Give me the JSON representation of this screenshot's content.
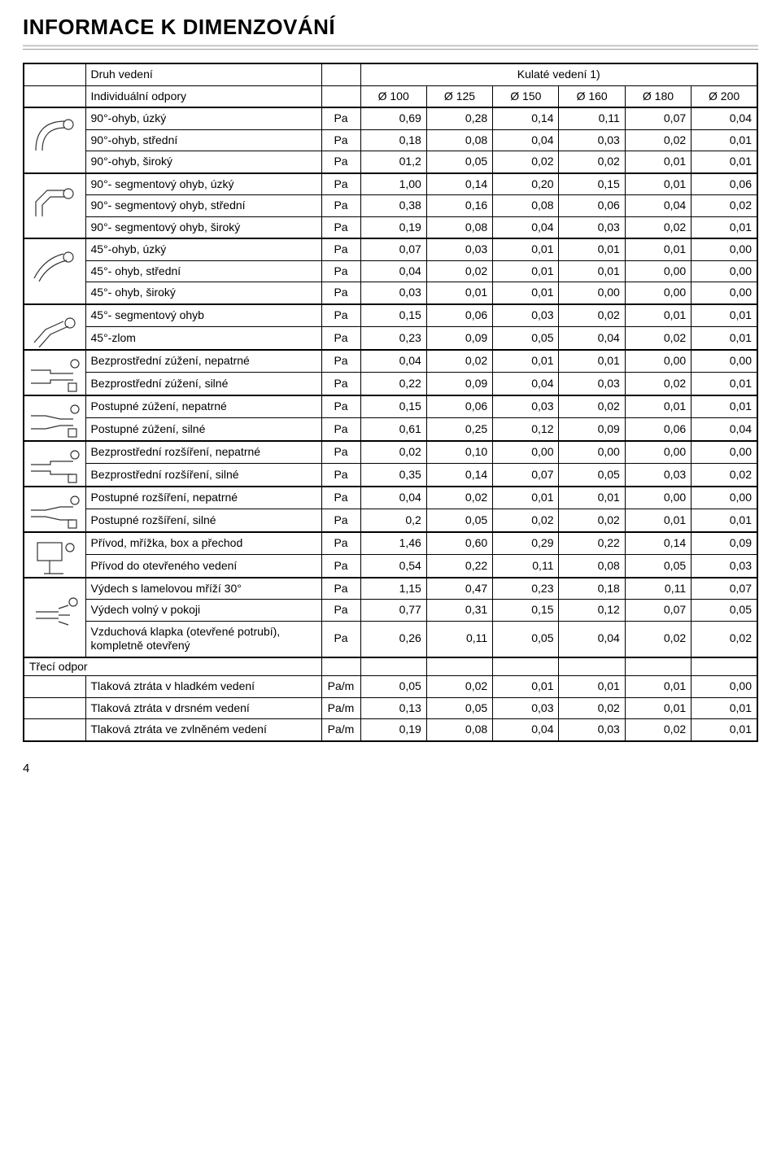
{
  "title": "INFORMACE K DIMENZOVÁNÍ",
  "header": {
    "druh_vedeni": "Druh vedení",
    "kulate_vedeni": "Kulaté vedení 1)",
    "indiv_odpory": "Individuální odpory",
    "diameters": [
      "Ø 100",
      "Ø 125",
      "Ø 150",
      "Ø 160",
      "Ø 180",
      "Ø 200"
    ]
  },
  "groups": [
    {
      "icon": "bend90",
      "rows": [
        {
          "label": "90°-ohyb, úzký",
          "unit": "Pa",
          "vals": [
            "0,69",
            "0,28",
            "0,14",
            "0,11",
            "0,07",
            "0,04"
          ]
        },
        {
          "label": "90°-ohyb, střední",
          "unit": "Pa",
          "vals": [
            "0,18",
            "0,08",
            "0,04",
            "0,03",
            "0,02",
            "0,01"
          ]
        },
        {
          "label": "90°-ohyb, široký",
          "unit": "Pa",
          "vals": [
            "01,2",
            "0,05",
            "0,02",
            "0,02",
            "0,01",
            "0,01"
          ]
        }
      ]
    },
    {
      "icon": "seg90",
      "rows": [
        {
          "label": "90°- segmentový ohyb, úzký",
          "unit": "Pa",
          "vals": [
            "1,00",
            "0,14",
            "0,20",
            "0,15",
            "0,01",
            "0,06"
          ]
        },
        {
          "label": "90°- segmentový ohyb, střední",
          "unit": "Pa",
          "vals": [
            "0,38",
            "0,16",
            "0,08",
            "0,06",
            "0,04",
            "0,02"
          ]
        },
        {
          "label": "90°- segmentový ohyb, široký",
          "unit": "Pa",
          "vals": [
            "0,19",
            "0,08",
            "0,04",
            "0,03",
            "0,02",
            "0,01"
          ]
        }
      ]
    },
    {
      "icon": "bend45",
      "rows": [
        {
          "label": "45°-ohyb, úzký",
          "unit": "Pa",
          "vals": [
            "0,07",
            "0,03",
            "0,01",
            "0,01",
            "0,01",
            "0,00"
          ]
        },
        {
          "label": "45°- ohyb, střední",
          "unit": "Pa",
          "vals": [
            "0,04",
            "0,02",
            "0,01",
            "0,01",
            "0,00",
            "0,00"
          ]
        },
        {
          "label": "45°- ohyb, široký",
          "unit": "Pa",
          "vals": [
            "0,03",
            "0,01",
            "0,01",
            "0,00",
            "0,00",
            "0,00"
          ]
        }
      ]
    },
    {
      "icon": "seg45",
      "rows": [
        {
          "label": "45°- segmentový ohyb",
          "unit": "Pa",
          "vals": [
            "0,15",
            "0,06",
            "0,03",
            "0,02",
            "0,01",
            "0,01"
          ]
        },
        {
          "label": "45°-zlom",
          "unit": "Pa",
          "vals": [
            "0,23",
            "0,09",
            "0,05",
            "0,04",
            "0,02",
            "0,01"
          ]
        }
      ]
    },
    {
      "icon": "narrow-direct",
      "rows": [
        {
          "label": "Bezprostřední zúžení, nepatrné",
          "unit": "Pa",
          "vals": [
            "0,04",
            "0,02",
            "0,01",
            "0,01",
            "0,00",
            "0,00"
          ]
        },
        {
          "label": "Bezprostřední zúžení, silné",
          "unit": "Pa",
          "vals": [
            "0,22",
            "0,09",
            "0,04",
            "0,03",
            "0,02",
            "0,01"
          ]
        }
      ]
    },
    {
      "icon": "narrow-gradual",
      "rows": [
        {
          "label": "Postupné zúžení, nepatrné",
          "unit": "Pa",
          "vals": [
            "0,15",
            "0,06",
            "0,03",
            "0,02",
            "0,01",
            "0,01"
          ]
        },
        {
          "label": "Postupné zúžení, silné",
          "unit": "Pa",
          "vals": [
            "0,61",
            "0,25",
            "0,12",
            "0,09",
            "0,06",
            "0,04"
          ]
        }
      ]
    },
    {
      "icon": "widen-direct",
      "rows": [
        {
          "label": "Bezprostřední rozšíření, nepatrné",
          "unit": "Pa",
          "vals": [
            "0,02",
            "0,10",
            "0,00",
            "0,00",
            "0,00",
            "0,00"
          ]
        },
        {
          "label": "Bezprostřední rozšíření, silné",
          "unit": "Pa",
          "vals": [
            "0,35",
            "0,14",
            "0,07",
            "0,05",
            "0,03",
            "0,02"
          ]
        }
      ]
    },
    {
      "icon": "widen-gradual",
      "rows": [
        {
          "label": "Postupné rozšíření, nepatrné",
          "unit": "Pa",
          "vals": [
            "0,04",
            "0,02",
            "0,01",
            "0,01",
            "0,00",
            "0,00"
          ]
        },
        {
          "label": "Postupné rozšíření, silné",
          "unit": "Pa",
          "vals": [
            "0,2",
            "0,05",
            "0,02",
            "0,02",
            "0,01",
            "0,01"
          ]
        }
      ]
    },
    {
      "icon": "inlet",
      "rows": [
        {
          "label": "Přívod, mřížka, box a přechod",
          "unit": "Pa",
          "vals": [
            "1,46",
            "0,60",
            "0,29",
            "0,22",
            "0,14",
            "0,09"
          ]
        },
        {
          "label": "Přívod do otevřeného vedení",
          "unit": "Pa",
          "vals": [
            "0,54",
            "0,22",
            "0,11",
            "0,08",
            "0,05",
            "0,03"
          ]
        }
      ]
    },
    {
      "icon": "outlet",
      "rows": [
        {
          "label": "Výdech s lamelovou mříží 30°",
          "unit": "Pa",
          "vals": [
            "1,15",
            "0,47",
            "0,23",
            "0,18",
            "0,11",
            "0,07"
          ]
        },
        {
          "label": "Výdech volný v pokoji",
          "unit": "Pa",
          "vals": [
            "0,77",
            "0,31",
            "0,15",
            "0,12",
            "0,07",
            "0,05"
          ]
        },
        {
          "label": "Vzduchová klapka (otevřené potrubí), kompletně otevřený",
          "unit": "Pa",
          "vals": [
            "0,26",
            "0,11",
            "0,05",
            "0,04",
            "0,02",
            "0,02"
          ]
        }
      ]
    }
  ],
  "friction": {
    "heading": "Třecí odpor",
    "rows": [
      {
        "label": "Tlaková ztráta v hladkém vedení",
        "unit": "Pa/m",
        "vals": [
          "0,05",
          "0,02",
          "0,01",
          "0,01",
          "0,01",
          "0,00"
        ]
      },
      {
        "label": "Tlaková ztráta v drsném vedení",
        "unit": "Pa/m",
        "vals": [
          "0,13",
          "0,05",
          "0,03",
          "0,02",
          "0,01",
          "0,01"
        ]
      },
      {
        "label": "Tlaková ztráta ve zvlněném vedení",
        "unit": "Pa/m",
        "vals": [
          "0,19",
          "0,08",
          "0,04",
          "0,03",
          "0,02",
          "0,01"
        ]
      }
    ]
  },
  "page_number": "4"
}
